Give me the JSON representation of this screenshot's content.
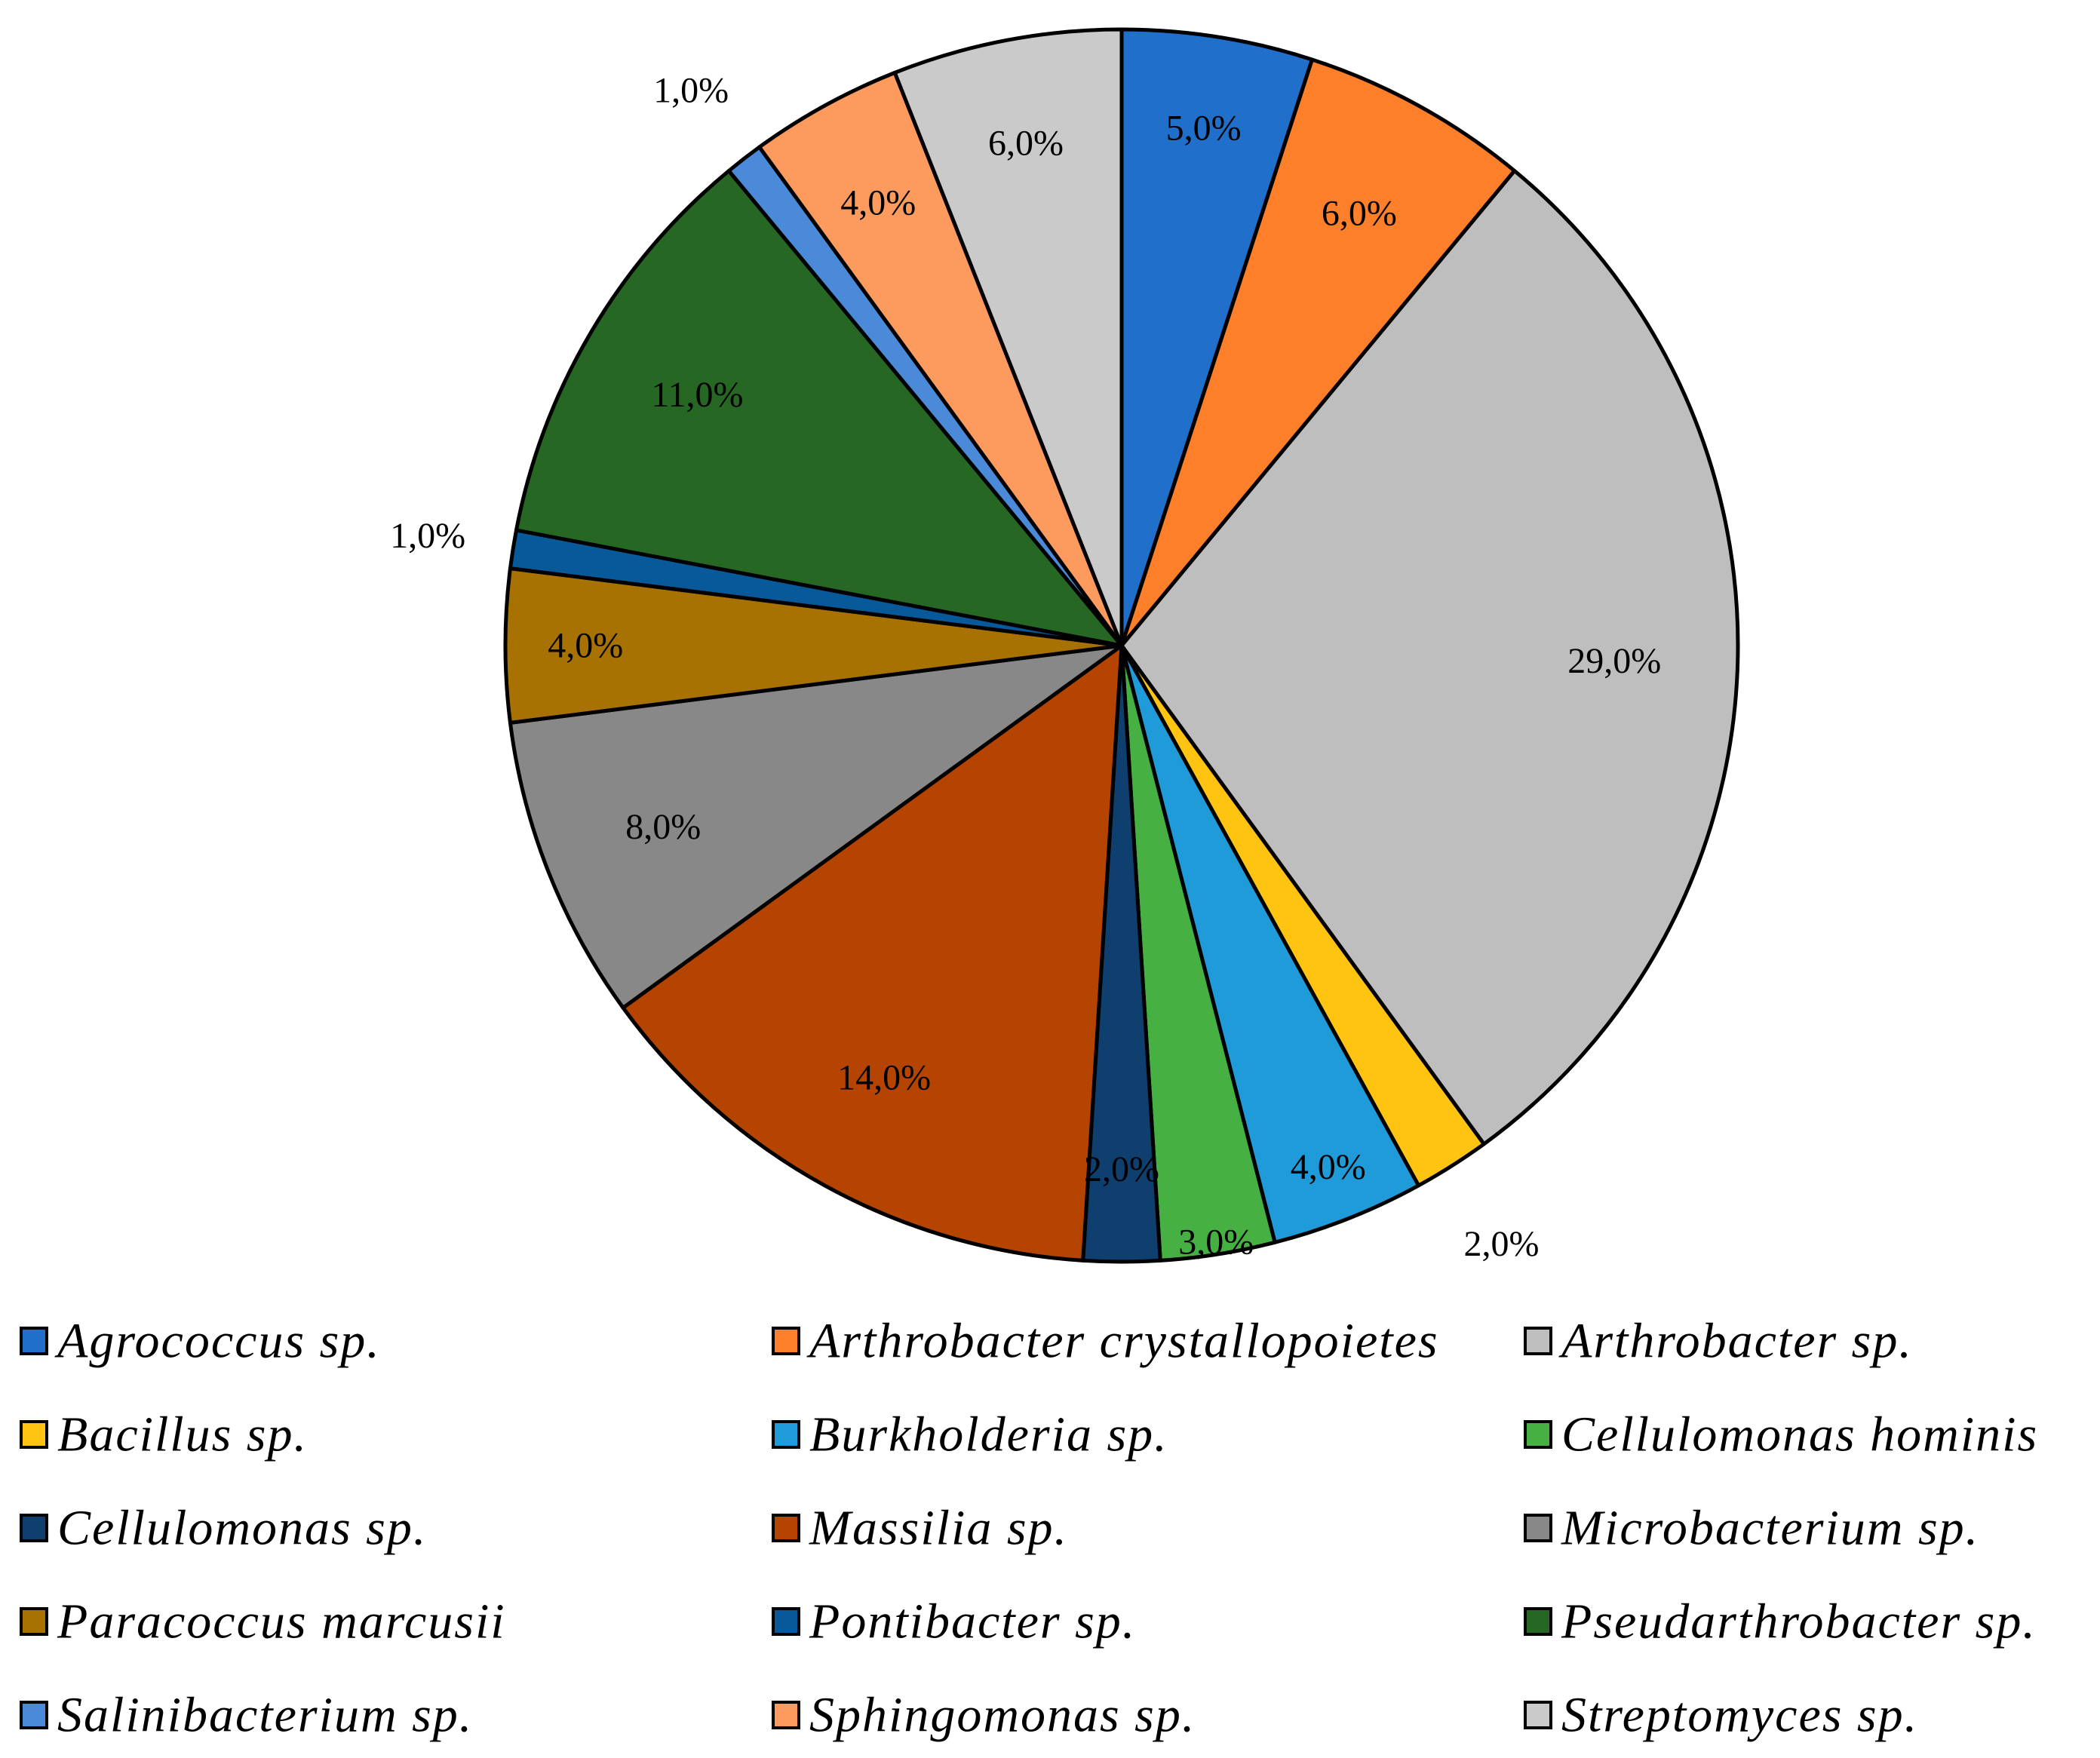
{
  "chart_data": {
    "type": "pie",
    "title": "",
    "start": "top, clockwise",
    "legend_position": "bottom",
    "slices": [
      {
        "name": "Agrococcus sp.",
        "value": 5.0,
        "label": "5,0%",
        "color": "#1f6fcb"
      },
      {
        "name": "Arthrobacter crystallopoietes",
        "value": 6.0,
        "label": "6,0%",
        "color": "#fd7f2a"
      },
      {
        "name": "Arthrobacter sp.",
        "value": 29.0,
        "label": "29,0%",
        "color": "#bebebe"
      },
      {
        "name": "Bacillus sp.",
        "value": 2.0,
        "label": "2,0%",
        "color": "#ffc311"
      },
      {
        "name": "Burkholderia sp.",
        "value": 4.0,
        "label": "4,0%",
        "color": "#1f9bd9"
      },
      {
        "name": "Cellulomonas hominis",
        "value": 3.0,
        "label": "3,0%",
        "color": "#47b043"
      },
      {
        "name": "Cellulomonas sp.",
        "value": 2.0,
        "label": "2,0%",
        "color": "#0f3f6f"
      },
      {
        "name": "Massilia sp.",
        "value": 14.0,
        "label": "14,0%",
        "color": "#b54400"
      },
      {
        "name": "Microbacterium sp.",
        "value": 8.0,
        "label": "8,0%",
        "color": "#888888"
      },
      {
        "name": "Paracoccus marcusii",
        "value": 4.0,
        "label": "4,0%",
        "color": "#a77202"
      },
      {
        "name": "Pontibacter sp.",
        "value": 1.0,
        "label": "1,0%",
        "color": "#085999"
      },
      {
        "name": "Pseudarthrobacter  sp.",
        "value": 11.0,
        "label": "11,0%",
        "color": "#266823"
      },
      {
        "name": "Salinibacterium sp.",
        "value": 1.0,
        "label": "1,0%",
        "color": "#4a8ad9"
      },
      {
        "name": "Sphingomonas sp.",
        "value": 4.0,
        "label": "4,0%",
        "color": "#fd9a5e"
      },
      {
        "name": "Streptomyces sp.",
        "value": 6.0,
        "label": "6,0%",
        "color": "#cacaca"
      }
    ]
  }
}
